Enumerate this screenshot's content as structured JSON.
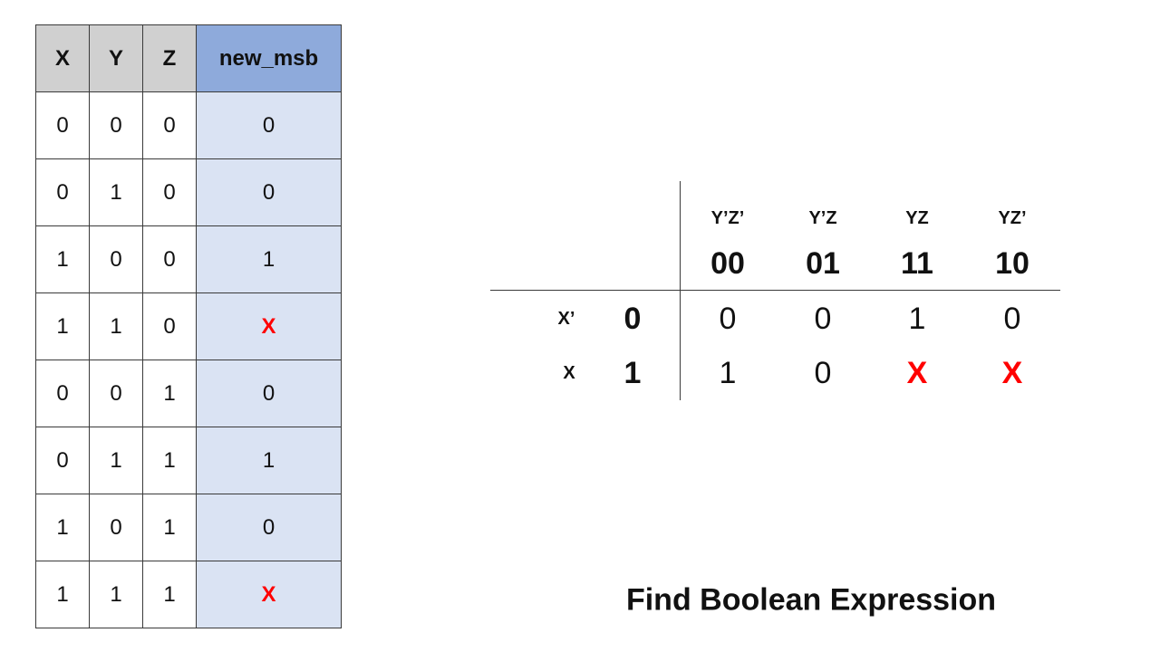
{
  "truth_table": {
    "headers": [
      "X",
      "Y",
      "Z",
      "new_msb"
    ],
    "rows": [
      [
        "0",
        "0",
        "0",
        "0"
      ],
      [
        "0",
        "1",
        "0",
        "0"
      ],
      [
        "1",
        "0",
        "0",
        "1"
      ],
      [
        "1",
        "1",
        "0",
        "X"
      ],
      [
        "0",
        "0",
        "1",
        "0"
      ],
      [
        "0",
        "1",
        "1",
        "1"
      ],
      [
        "1",
        "0",
        "1",
        "0"
      ],
      [
        "1",
        "1",
        "1",
        "X"
      ]
    ]
  },
  "kmap": {
    "col_labels": [
      "Y’Z’",
      "Y’Z",
      "YZ",
      "YZ’"
    ],
    "col_codes": [
      "00",
      "01",
      "11",
      "10"
    ],
    "rows": [
      {
        "label": "X’",
        "code": "0",
        "values": [
          "0",
          "0",
          "1",
          "0"
        ]
      },
      {
        "label": "X",
        "code": "1",
        "values": [
          "1",
          "0",
          "X",
          "X"
        ]
      }
    ]
  },
  "caption": "Find Boolean Expression",
  "colors": {
    "header_gray": "#d0d0d0",
    "header_blue": "#8eaadb",
    "output_fill": "#dae3f3",
    "dont_care_red": "#ff0000"
  }
}
